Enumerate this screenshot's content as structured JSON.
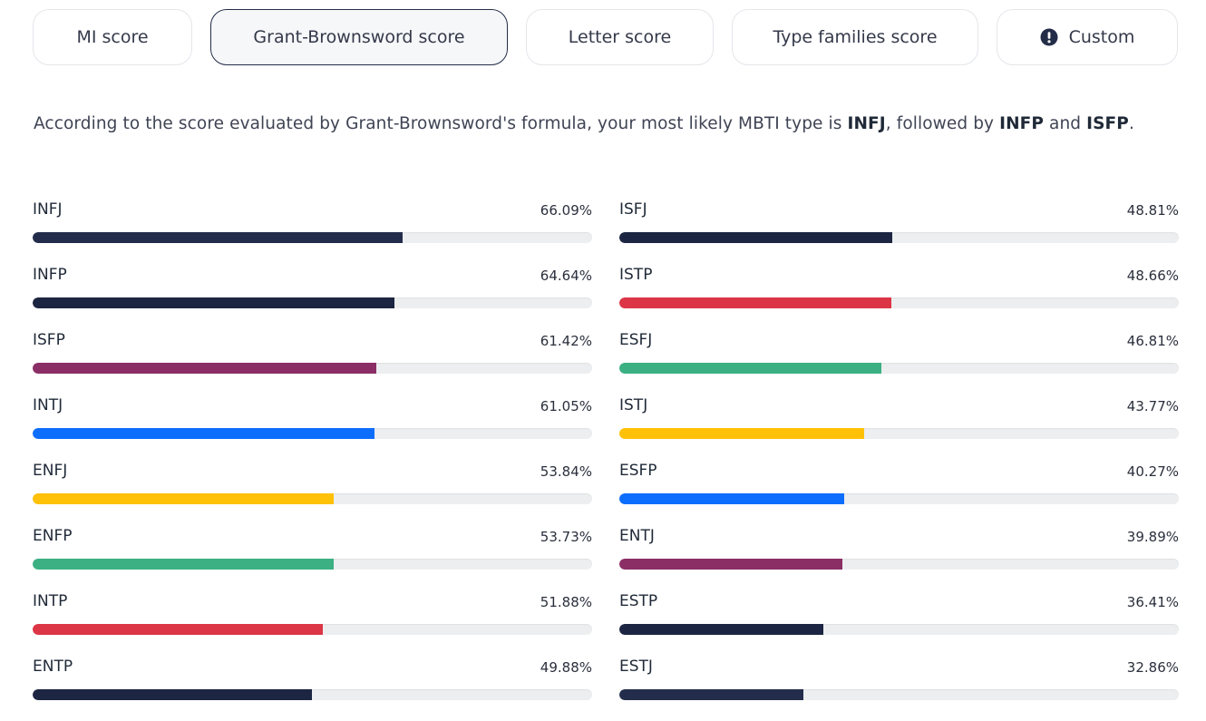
{
  "tabs": [
    {
      "label": "MI score",
      "active": false,
      "icon": null
    },
    {
      "label": "Grant-Brownsword score",
      "active": true,
      "icon": null
    },
    {
      "label": "Letter score",
      "active": false,
      "icon": null
    },
    {
      "label": "Type families score",
      "active": false,
      "icon": null
    },
    {
      "label": "Custom",
      "active": false,
      "icon": "exclamation-circle-icon"
    }
  ],
  "summary": {
    "prefix": "According to the score evaluated by Grant-Brownsword's formula, your most likely MBTI type is ",
    "top_type": "INFJ",
    "middle": ", followed by ",
    "second_type": "INFP",
    "and": " and ",
    "third_type": "ISFP",
    "suffix": "."
  },
  "colors": {
    "navy": "#1c2541",
    "red": "#dc3545",
    "green": "#3cb083",
    "purple": "#8b2e66",
    "blue": "#0d6efd",
    "yellow": "#ffc107",
    "track": "#eceef0"
  },
  "scores_left": [
    {
      "type": "INFJ",
      "percent": 66.09,
      "label": "66.09%",
      "color": "#232d4b"
    },
    {
      "type": "INFP",
      "percent": 64.64,
      "label": "64.64%",
      "color": "#1c2541"
    },
    {
      "type": "ISFP",
      "percent": 61.42,
      "label": "61.42%",
      "color": "#8b2e66"
    },
    {
      "type": "INTJ",
      "percent": 61.05,
      "label": "61.05%",
      "color": "#0d6efd"
    },
    {
      "type": "ENFJ",
      "percent": 53.84,
      "label": "53.84%",
      "color": "#ffc107"
    },
    {
      "type": "ENFP",
      "percent": 53.73,
      "label": "53.73%",
      "color": "#3cb083"
    },
    {
      "type": "INTP",
      "percent": 51.88,
      "label": "51.88%",
      "color": "#dc3545"
    },
    {
      "type": "ENTP",
      "percent": 49.88,
      "label": "49.88%",
      "color": "#1c2541"
    }
  ],
  "scores_right": [
    {
      "type": "ISFJ",
      "percent": 48.81,
      "label": "48.81%",
      "color": "#1c2541"
    },
    {
      "type": "ISTP",
      "percent": 48.66,
      "label": "48.66%",
      "color": "#dc3545"
    },
    {
      "type": "ESFJ",
      "percent": 46.81,
      "label": "46.81%",
      "color": "#3cb083"
    },
    {
      "type": "ISTJ",
      "percent": 43.77,
      "label": "43.77%",
      "color": "#ffc107"
    },
    {
      "type": "ESFP",
      "percent": 40.27,
      "label": "40.27%",
      "color": "#0d6efd"
    },
    {
      "type": "ENTJ",
      "percent": 39.89,
      "label": "39.89%",
      "color": "#8b2e66"
    },
    {
      "type": "ESTP",
      "percent": 36.41,
      "label": "36.41%",
      "color": "#1c2541"
    },
    {
      "type": "ESTJ",
      "percent": 32.86,
      "label": "32.86%",
      "color": "#232d4b"
    }
  ]
}
